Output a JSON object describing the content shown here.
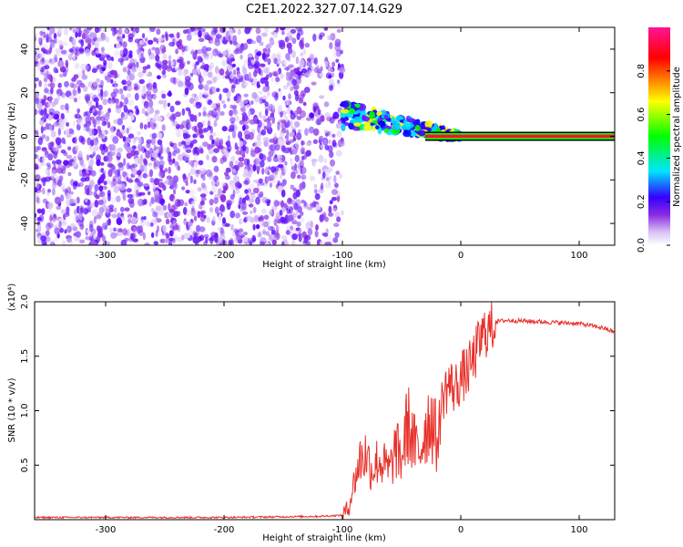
{
  "title": "C2E1.2022.327.07.14.G29",
  "chart_data": [
    {
      "type": "heatmap",
      "xlabel": "Height of straight line (km)",
      "ylabel": "Frequency (Hz)",
      "xlim": [
        -360,
        130
      ],
      "ylim": [
        -50,
        50
      ],
      "xticks": [
        -300,
        -200,
        -100,
        0,
        100
      ],
      "yticks": [
        -40,
        -20,
        0,
        20,
        40
      ],
      "colorbar": {
        "label": "Normalized spectral amplitude",
        "range": [
          0,
          1
        ],
        "ticks": [
          "0.0",
          "0.2",
          "0.4",
          "0.6",
          "0.8"
        ],
        "colors": [
          "#ffffff",
          "#8a2be2",
          "#0000ff",
          "#00e5ff",
          "#00ff00",
          "#ffff00",
          "#ff7f00",
          "#ff0000",
          "#ff1493"
        ]
      },
      "regions": [
        {
          "description": "diffuse purple noise",
          "x_range": [
            -360,
            -100
          ],
          "y_range": [
            -50,
            50
          ],
          "amplitude": 0.1
        },
        {
          "description": "tilted blob band",
          "x_range": [
            -100,
            0
          ],
          "y_center_at_start": 10,
          "y_center_at_end": 0,
          "amplitude": 0.5
        },
        {
          "description": "narrow carrier line",
          "x_range": [
            0,
            130
          ],
          "y": 0,
          "amplitude": 0.85
        }
      ]
    },
    {
      "type": "line",
      "xlabel": "Height of straight line (km)",
      "ylabel": "SNR (10 * v/v)",
      "y_multiplier": "(x10⁴)",
      "xlim": [
        -360,
        130
      ],
      "ylim": [
        0,
        2.0
      ],
      "xticks": [
        -300,
        -200,
        -100,
        0,
        100
      ],
      "yticks": [
        "0.5",
        "1.0",
        "1.5",
        "2.0"
      ],
      "series": [
        {
          "color": "#e8302a",
          "x": [
            -360,
            -300,
            -200,
            -120,
            -100,
            -95,
            -90,
            -85,
            -80,
            -75,
            -70,
            -65,
            -60,
            -55,
            -50,
            -45,
            -40,
            -35,
            -30,
            -25,
            -20,
            -15,
            -10,
            -5,
            0,
            5,
            10,
            15,
            20,
            25,
            30,
            40,
            60,
            80,
            100,
            120,
            130
          ],
          "y": [
            0.02,
            0.02,
            0.02,
            0.03,
            0.04,
            0.1,
            0.35,
            0.55,
            0.6,
            0.45,
            0.55,
            0.5,
            0.45,
            0.65,
            0.55,
            0.9,
            0.7,
            0.6,
            0.85,
            0.95,
            0.7,
            1.15,
            1.25,
            1.2,
            1.3,
            1.35,
            1.45,
            1.6,
            1.72,
            1.75,
            1.82,
            1.83,
            1.82,
            1.81,
            1.8,
            1.76,
            1.72
          ]
        }
      ]
    }
  ]
}
